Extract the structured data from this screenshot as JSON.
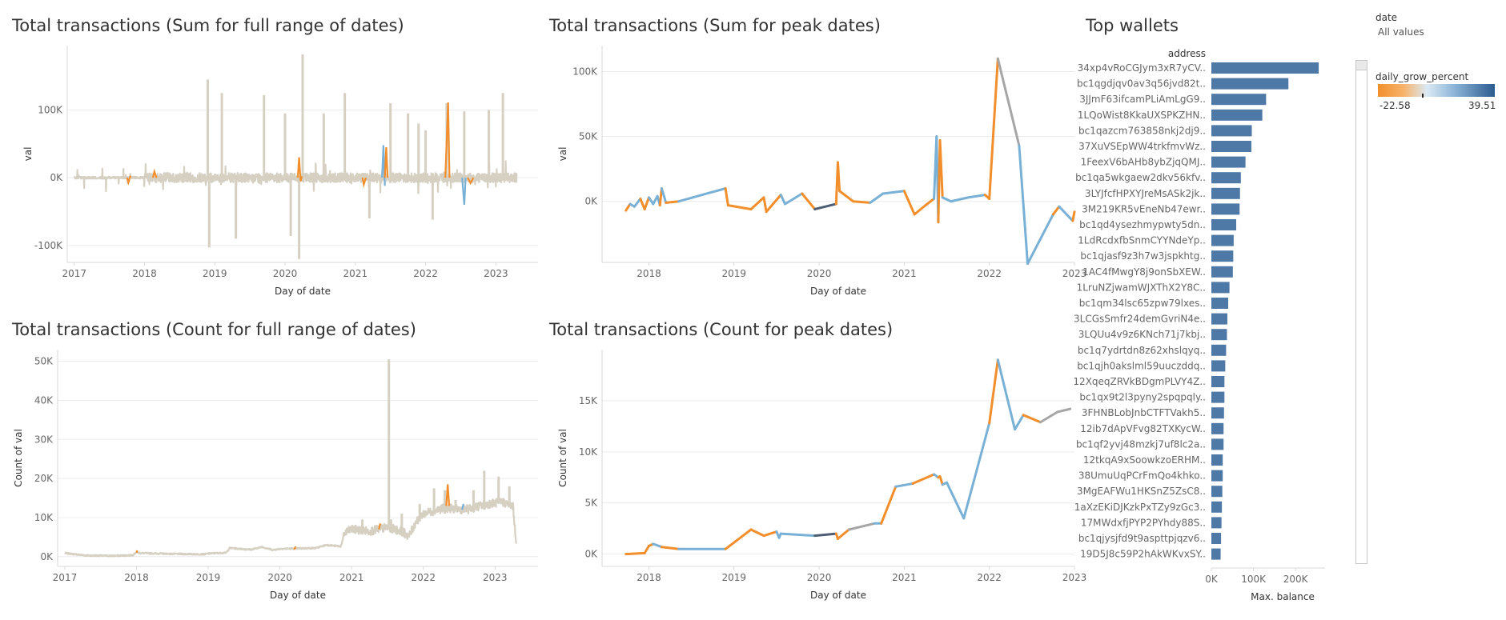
{
  "colors": {
    "neutral": "#d6d0c2",
    "orange": "#f28e2b",
    "blue": "#79b0d6",
    "dark": "#4e5d73",
    "gray": "#a6a6a6",
    "bar": "#4e79a7",
    "grid": "#ececec",
    "axis": "#d9d9d9",
    "legend_low": "#f28e2b",
    "legend_mid": "#dbe9f4",
    "legend_high": "#2c5b8f"
  },
  "titles": {
    "sum_full": "Total transactions (Sum for full range of dates)",
    "sum_peak": "Total transactions (Sum for peak dates)",
    "count_full": "Total transactions (Count for full range of dates)",
    "count_peak": "Total transactions (Count for peak dates)",
    "wallets": "Top wallets"
  },
  "filter": {
    "label": "date",
    "value": "All values"
  },
  "legend": {
    "title": "daily_grow_percent",
    "min": "-22.58",
    "max": "39.51"
  },
  "chart_data": [
    {
      "id": "sum_full",
      "type": "line",
      "title": "Total transactions (Sum for full range of dates)",
      "xlabel": "Day of date",
      "ylabel": "val",
      "xlim": [
        2016.9,
        2023.6
      ],
      "ylim": [
        -125000,
        195000
      ],
      "x_ticks": [
        2017,
        2018,
        2019,
        2020,
        2021,
        2022,
        2023
      ],
      "x_tick_labels": [
        "2017",
        "2018",
        "2019",
        "2020",
        "2021",
        "2022",
        "2023"
      ],
      "y_ticks": [
        -100000,
        0,
        100000
      ],
      "y_tick_labels": [
        "-100K",
        "0K",
        "100K"
      ],
      "spikes": [
        [
          2018.9,
          145000
        ],
        [
          2018.92,
          -103000
        ],
        [
          2019.3,
          -90000
        ],
        [
          2019.1,
          125000
        ],
        [
          2019.7,
          122000
        ],
        [
          2020.2,
          -120000
        ],
        [
          2020.08,
          -86000
        ],
        [
          2020.25,
          182000
        ],
        [
          2020.0,
          95000
        ],
        [
          2020.55,
          95000
        ],
        [
          2020.85,
          125000
        ],
        [
          2021.2,
          -60000
        ],
        [
          2021.5,
          110000
        ],
        [
          2021.75,
          95000
        ],
        [
          2022.1,
          -62000
        ],
        [
          2022.3,
          110000
        ],
        [
          2022.55,
          98000
        ],
        [
          2022.9,
          100000
        ],
        [
          2023.1,
          125000
        ],
        [
          2022.0,
          70000
        ],
        [
          2021.9,
          80000
        ]
      ],
      "highlights": [
        {
          "color": "orange",
          "points": [
            [
              2017.75,
              0
            ],
            [
              2017.77,
              -7000
            ],
            [
              2017.8,
              3000
            ]
          ]
        },
        {
          "color": "orange",
          "points": [
            [
              2018.12,
              0
            ],
            [
              2018.14,
              9000
            ],
            [
              2018.17,
              0
            ]
          ]
        },
        {
          "color": "orange",
          "points": [
            [
              2020.18,
              0
            ],
            [
              2020.2,
              30000
            ],
            [
              2020.22,
              -5000
            ],
            [
              2020.24,
              2000
            ]
          ]
        },
        {
          "color": "orange",
          "points": [
            [
              2021.1,
              0
            ],
            [
              2021.12,
              -10000
            ],
            [
              2021.15,
              0
            ]
          ]
        },
        {
          "color": "blue",
          "points": [
            [
              2021.38,
              0
            ],
            [
              2021.4,
              48000
            ],
            [
              2021.42,
              -12000
            ]
          ]
        },
        {
          "color": "orange",
          "points": [
            [
              2021.42,
              0
            ],
            [
              2021.44,
              45000
            ],
            [
              2021.46,
              0
            ]
          ]
        },
        {
          "color": "orange",
          "points": [
            [
              2022.28,
              0
            ],
            [
              2022.32,
              111000
            ],
            [
              2022.34,
              0
            ]
          ]
        },
        {
          "color": "blue",
          "points": [
            [
              2022.52,
              0
            ],
            [
              2022.55,
              -40000
            ],
            [
              2022.57,
              0
            ]
          ]
        },
        {
          "color": "orange",
          "points": [
            [
              2022.6,
              0
            ],
            [
              2022.64,
              -8000
            ],
            [
              2022.68,
              0
            ]
          ]
        }
      ]
    },
    {
      "id": "sum_peak",
      "type": "line",
      "title": "Total transactions (Sum for peak dates)",
      "xlabel": "Day of date",
      "ylabel": "val",
      "xlim": [
        2017.45,
        2023.0
      ],
      "ylim": [
        -47000,
        120000
      ],
      "x_ticks": [
        2018,
        2019,
        2020,
        2021,
        2022,
        2023
      ],
      "x_tick_labels": [
        "2018",
        "2019",
        "2020",
        "2021",
        "2022",
        "2023"
      ],
      "y_ticks": [
        0,
        50000,
        100000
      ],
      "y_tick_labels": [
        "0K",
        "50K",
        "100K"
      ],
      "series_points": [
        [
          2017.73,
          -7000,
          "orange"
        ],
        [
          2017.78,
          -2000,
          "orange"
        ],
        [
          2017.83,
          -4000,
          "blue"
        ],
        [
          2017.9,
          2000,
          "blue"
        ],
        [
          2017.95,
          -6000,
          "orange"
        ],
        [
          2018.0,
          3000,
          "orange"
        ],
        [
          2018.05,
          -2000,
          "blue"
        ],
        [
          2018.1,
          4000,
          "blue"
        ],
        [
          2018.13,
          -3000,
          "blue"
        ],
        [
          2018.15,
          10000,
          "orange"
        ],
        [
          2018.2,
          -1000,
          "blue"
        ],
        [
          2018.35,
          0,
          "orange"
        ],
        [
          2018.9,
          10000,
          "blue"
        ],
        [
          2018.93,
          -3000,
          "orange"
        ],
        [
          2019.2,
          -6000,
          "orange"
        ],
        [
          2019.35,
          3000,
          "orange"
        ],
        [
          2019.38,
          -8000,
          "orange"
        ],
        [
          2019.55,
          5000,
          "orange"
        ],
        [
          2019.6,
          -2000,
          "blue"
        ],
        [
          2019.8,
          6000,
          "blue"
        ],
        [
          2019.95,
          -6000,
          "orange"
        ],
        [
          2020.2,
          -2000,
          "dark"
        ],
        [
          2020.22,
          30000,
          "orange"
        ],
        [
          2020.24,
          8000,
          "orange"
        ],
        [
          2020.4,
          0,
          "orange"
        ],
        [
          2020.6,
          -1000,
          "orange"
        ],
        [
          2020.75,
          6000,
          "blue"
        ],
        [
          2021.0,
          8000,
          "blue"
        ],
        [
          2021.12,
          -10000,
          "orange"
        ],
        [
          2021.25,
          -3000,
          "orange"
        ],
        [
          2021.35,
          2000,
          "orange"
        ],
        [
          2021.38,
          50000,
          "blue"
        ],
        [
          2021.4,
          -16000,
          "blue"
        ],
        [
          2021.42,
          47000,
          "orange"
        ],
        [
          2021.45,
          3000,
          "orange"
        ],
        [
          2021.55,
          0,
          "blue"
        ],
        [
          2021.75,
          3000,
          "blue"
        ],
        [
          2021.95,
          5000,
          "blue"
        ],
        [
          2022.0,
          2000,
          "orange"
        ],
        [
          2022.1,
          110000,
          "orange"
        ],
        [
          2022.35,
          43000,
          "gray"
        ],
        [
          2022.45,
          -48000,
          "blue"
        ],
        [
          2022.75,
          -10000,
          "blue"
        ],
        [
          2022.82,
          -4000,
          "orange"
        ],
        [
          2022.98,
          -15000,
          "blue"
        ],
        [
          2023.0,
          -8000,
          "orange"
        ]
      ]
    },
    {
      "id": "count_full",
      "type": "line",
      "title": "Total transactions (Count for full range of dates)",
      "xlabel": "Day of date",
      "ylabel": "Count of val",
      "xlim": [
        2016.9,
        2023.6
      ],
      "ylim": [
        -2500,
        53000
      ],
      "x_ticks": [
        2017,
        2018,
        2019,
        2020,
        2021,
        2022,
        2023
      ],
      "x_tick_labels": [
        "2017",
        "2018",
        "2019",
        "2020",
        "2021",
        "2022",
        "2023"
      ],
      "y_ticks": [
        0,
        10000,
        20000,
        30000,
        40000,
        50000
      ],
      "y_tick_labels": [
        "0K",
        "10K",
        "20K",
        "30K",
        "40K",
        "50K"
      ],
      "baseline": [
        [
          2017.0,
          900
        ],
        [
          2017.3,
          300
        ],
        [
          2017.7,
          200
        ],
        [
          2017.95,
          400
        ],
        [
          2018.0,
          1200
        ],
        [
          2018.05,
          900
        ],
        [
          2018.5,
          700
        ],
        [
          2018.95,
          600
        ],
        [
          2019.0,
          800
        ],
        [
          2019.25,
          1000
        ],
        [
          2019.3,
          2200
        ],
        [
          2019.6,
          1800
        ],
        [
          2019.75,
          2500
        ],
        [
          2019.9,
          1700
        ],
        [
          2020.0,
          2000
        ],
        [
          2020.5,
          2200
        ],
        [
          2020.65,
          3000
        ],
        [
          2020.85,
          2600
        ],
        [
          2020.9,
          6000
        ],
        [
          2021.0,
          7000
        ],
        [
          2021.25,
          6500
        ],
        [
          2021.5,
          7500
        ],
        [
          2021.7,
          6500
        ],
        [
          2021.8,
          5200
        ],
        [
          2021.9,
          9000
        ],
        [
          2022.0,
          11000
        ],
        [
          2022.3,
          12500
        ],
        [
          2022.6,
          12000
        ],
        [
          2022.9,
          13500
        ],
        [
          2023.1,
          14000
        ],
        [
          2023.25,
          13000
        ],
        [
          2023.3,
          2500
        ]
      ],
      "spikes": [
        [
          2021.52,
          50500
        ],
        [
          2021.55,
          9500
        ],
        [
          2021.95,
          13500
        ],
        [
          2022.15,
          17500
        ],
        [
          2022.3,
          17000
        ],
        [
          2022.45,
          14500
        ],
        [
          2022.7,
          17000
        ],
        [
          2022.85,
          22000
        ],
        [
          2023.05,
          20500
        ],
        [
          2023.2,
          18000
        ],
        [
          2021.7,
          11000
        ],
        [
          2021.15,
          9500
        ]
      ],
      "highlights": [
        {
          "color": "orange",
          "points": [
            [
              2018.0,
              1000
            ],
            [
              2018.01,
              1600
            ]
          ]
        },
        {
          "color": "orange",
          "points": [
            [
              2020.2,
              1800
            ],
            [
              2020.22,
              2600
            ]
          ]
        },
        {
          "color": "orange",
          "points": [
            [
              2021.38,
              7000
            ],
            [
              2021.4,
              8500
            ]
          ]
        },
        {
          "color": "orange",
          "points": [
            [
              2022.32,
              13000
            ],
            [
              2022.34,
              18500
            ],
            [
              2022.36,
              13000
            ]
          ]
        },
        {
          "color": "blue",
          "points": [
            [
              2022.54,
              12000
            ],
            [
              2022.56,
              13500
            ]
          ]
        }
      ]
    },
    {
      "id": "count_peak",
      "type": "line",
      "title": "Total transactions (Count for peak dates)",
      "xlabel": "Day of date",
      "ylabel": "Count of val",
      "xlim": [
        2017.45,
        2023.0
      ],
      "ylim": [
        -1200,
        20000
      ],
      "x_ticks": [
        2018,
        2019,
        2020,
        2021,
        2022,
        2023
      ],
      "x_tick_labels": [
        "2018",
        "2019",
        "2020",
        "2021",
        "2022",
        "2023"
      ],
      "y_ticks": [
        0,
        5000,
        10000,
        15000
      ],
      "y_tick_labels": [
        "0K",
        "5K",
        "10K",
        "15K"
      ],
      "series_points": [
        [
          2017.73,
          0,
          "orange"
        ],
        [
          2017.95,
          100,
          "orange"
        ],
        [
          2018.0,
          800,
          "orange"
        ],
        [
          2018.05,
          1000,
          "orange"
        ],
        [
          2018.15,
          700,
          "blue"
        ],
        [
          2018.35,
          500,
          "orange"
        ],
        [
          2018.9,
          500,
          "blue"
        ],
        [
          2019.2,
          2400,
          "orange"
        ],
        [
          2019.35,
          1800,
          "orange"
        ],
        [
          2019.5,
          2200,
          "orange"
        ],
        [
          2019.53,
          1600,
          "blue"
        ],
        [
          2019.55,
          2000,
          "blue"
        ],
        [
          2019.95,
          1800,
          "blue"
        ],
        [
          2020.2,
          2000,
          "dark"
        ],
        [
          2020.22,
          1500,
          "orange"
        ],
        [
          2020.35,
          2400,
          "orange"
        ],
        [
          2020.65,
          3000,
          "gray"
        ],
        [
          2020.73,
          3000,
          "blue"
        ],
        [
          2020.9,
          6600,
          "orange"
        ],
        [
          2021.1,
          6900,
          "blue"
        ],
        [
          2021.35,
          7800,
          "orange"
        ],
        [
          2021.4,
          7500,
          "blue"
        ],
        [
          2021.42,
          7600,
          "orange"
        ],
        [
          2021.45,
          6800,
          "orange"
        ],
        [
          2021.5,
          7000,
          "blue"
        ],
        [
          2021.7,
          3500,
          "blue"
        ],
        [
          2022.0,
          12800,
          "blue"
        ],
        [
          2022.1,
          19000,
          "orange"
        ],
        [
          2022.3,
          12200,
          "blue"
        ],
        [
          2022.4,
          13600,
          "blue"
        ],
        [
          2022.6,
          12900,
          "orange"
        ],
        [
          2022.8,
          13900,
          "gray"
        ],
        [
          2022.95,
          14200,
          "gray"
        ]
      ]
    },
    {
      "id": "wallets",
      "type": "bar",
      "orientation": "horizontal",
      "title": "Top wallets",
      "column_header": "address",
      "xlabel": "Max. balance",
      "xlim": [
        0,
        270000
      ],
      "x_ticks": [
        0,
        100000,
        200000
      ],
      "x_tick_labels": [
        "0K",
        "100K",
        "200K"
      ],
      "categories": [
        "34xp4vRoCGJym3xR7yCV..",
        "bc1qgdjqv0av3q56jvd82t..",
        "3JJmF63ifcamPLiAmLgG9..",
        "1LQoWist8KkaUXSPKZHN..",
        "bc1qazcm763858nkj2dj9..",
        "37XuVSEpWW4trkfmvWz..",
        "1FeexV6bAHb8ybZjqQMJ..",
        "bc1qa5wkgaew2dkv56kfv..",
        "3LYJfcfHPXYJreMsASk2jk..",
        "3M219KR5vEneNb47ewr..",
        "bc1qd4ysezhmypwty5dn..",
        "1LdRcdxfbSnmCYYNdeYp..",
        "bc1qjasf9z3h7w3jspkhtg..",
        "1AC4fMwgY8j9onSbXEW..",
        "1LruNZjwamWJXThX2Y8C..",
        "bc1qm34lsc65zpw79lxes..",
        "3LCGsSmfr24demGvriN4e..",
        "3LQUu4v9z6KNch71j7kbj..",
        "bc1q7ydrtdn8z62xhslqyq..",
        "bc1qjh0akslml59uuczddq..",
        "12XqeqZRVkBDgmPLVY4Z..",
        "bc1qx9t2l3pyny2spqpqly..",
        "3FHNBLobJnbCTFTVakh5..",
        "12ib7dApVFvg82TXKycW..",
        "bc1qf2yvj48mzkj7uf8lc2a..",
        "12tkqA9xSoowkzoERHM..",
        "38UmuUqPCrFmQo4khko..",
        "3MgEAFWu1HKSnZ5ZsC8..",
        "1aXzEKiDJKzkPxTZy9zGc3..",
        "17MWdxfjPYP2PYhdy88S..",
        "bc1qjysjfd9t9aspttpjqzv6..",
        "19D5J8c59P2hAkWKvxSY.."
      ],
      "values": [
        255000,
        183000,
        130000,
        121000,
        96000,
        95000,
        81000,
        70000,
        68000,
        67000,
        59000,
        53000,
        52000,
        51000,
        43000,
        40000,
        38000,
        37000,
        35000,
        33000,
        31000,
        31000,
        30000,
        29000,
        29000,
        27000,
        27000,
        26000,
        25000,
        24000,
        23000,
        22000
      ]
    }
  ]
}
